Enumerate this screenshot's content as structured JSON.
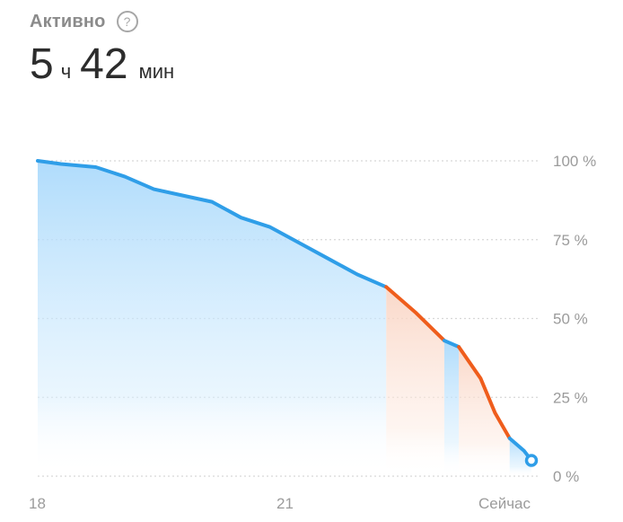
{
  "header": {
    "status_label": "Активно",
    "help_icon": "question-circle-icon",
    "hours_value": "5",
    "hours_unit": "ч",
    "minutes_value": "42",
    "minutes_unit": "мин"
  },
  "colors": {
    "blue": "#2f9ee8",
    "orange": "#ef5d1c",
    "blue_fill": "#a7d8fb",
    "orange_fill": "#f9d1bf",
    "grid": "#d7d7d7"
  },
  "chart_data": {
    "type": "area",
    "title": "",
    "xlabel": "",
    "ylabel": "",
    "x_ticks": [
      "18",
      "21",
      "Сейчас"
    ],
    "y_ticks": [
      "100 %",
      "75 %",
      "50 %",
      "25 %",
      "0 %"
    ],
    "y_range": [
      0,
      100
    ],
    "grid": true,
    "grid_style": "dotted",
    "series": [
      {
        "color": "blue",
        "points": [
          [
            "18:00",
            100
          ],
          [
            "18:16",
            99
          ],
          [
            "18:40",
            98
          ],
          [
            "19:00",
            95
          ],
          [
            "19:20",
            91
          ],
          [
            "19:40",
            89
          ],
          [
            "20:00",
            87
          ],
          [
            "20:20",
            82
          ],
          [
            "20:40",
            79
          ],
          [
            "21:00",
            74
          ],
          [
            "21:20",
            69
          ],
          [
            "21:40",
            64
          ],
          [
            "22:00",
            60
          ]
        ]
      },
      {
        "color": "orange",
        "points": [
          [
            "22:00",
            60
          ],
          [
            "22:20",
            52
          ],
          [
            "22:40",
            43
          ]
        ]
      },
      {
        "color": "blue",
        "points": [
          [
            "22:40",
            43
          ],
          [
            "22:50",
            41
          ]
        ]
      },
      {
        "color": "orange",
        "points": [
          [
            "22:50",
            41
          ],
          [
            "23:05",
            31
          ],
          [
            "23:15",
            20
          ],
          [
            "23:25",
            12
          ]
        ]
      },
      {
        "color": "blue",
        "points": [
          [
            "23:25",
            12
          ],
          [
            "23:35",
            8
          ],
          [
            "23:40",
            5
          ]
        ]
      }
    ],
    "current_point": [
      "23:40",
      5
    ]
  }
}
